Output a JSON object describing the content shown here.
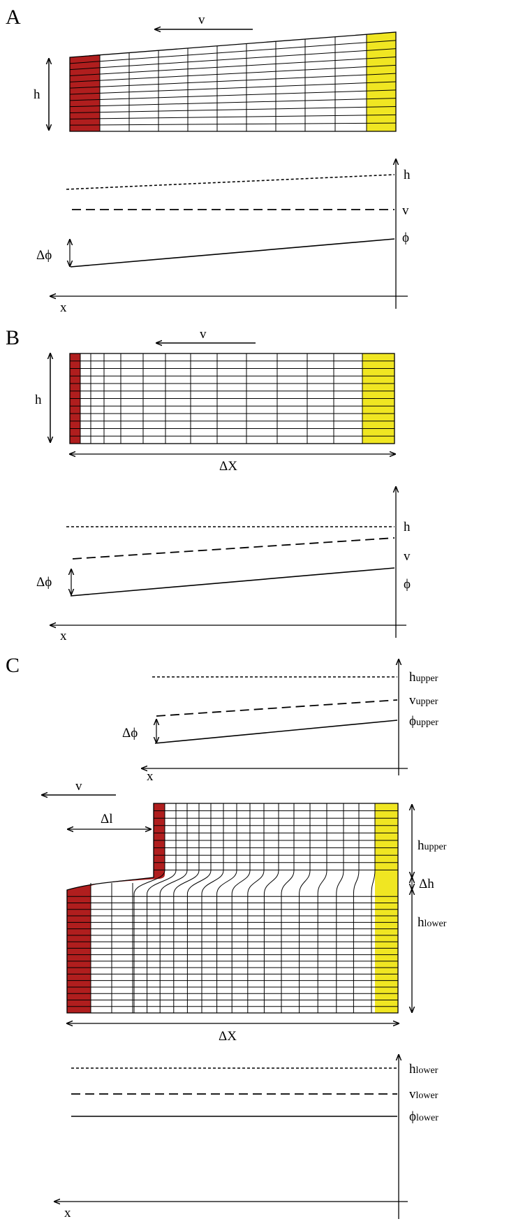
{
  "panels": {
    "a": {
      "letter": "A",
      "velocity": "v",
      "height": "h",
      "profile": {
        "h": "h",
        "v": "v",
        "phi": "ϕ",
        "dphi": "Δϕ",
        "x": "x"
      }
    },
    "b": {
      "letter": "B",
      "velocity": "v",
      "height": "h",
      "width": "ΔX",
      "profile": {
        "h": "h",
        "v": "v",
        "phi": "ϕ",
        "dphi": "Δϕ",
        "x": "x"
      }
    },
    "c": {
      "letter": "C",
      "velocity": "v",
      "dl": "Δl",
      "width": "ΔX",
      "dh": "Δh",
      "upper": {
        "h": "h",
        "v": "v",
        "phi": "ϕ",
        "sub": "upper",
        "dphi": "Δϕ",
        "x": "x"
      },
      "lower": {
        "h": "h",
        "v": "v",
        "phi": "ϕ",
        "sub": "lower",
        "x": "x"
      },
      "side": {
        "upper_h": "h",
        "upper_sub": "upper",
        "lower_h": "h",
        "lower_sub": "lower"
      }
    }
  },
  "colors": {
    "red": "#b01e1e",
    "yellow": "#f0e622",
    "line": "#000000"
  }
}
